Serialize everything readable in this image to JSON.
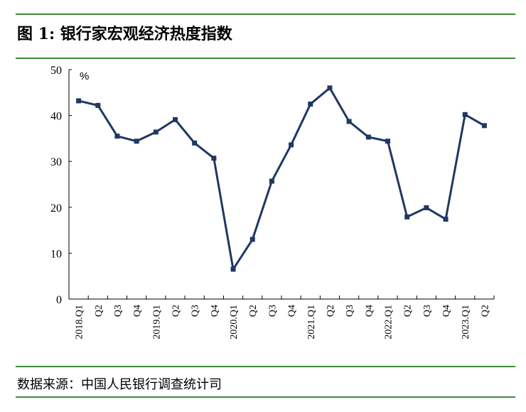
{
  "title": "图 1:  银行家宏观经济热度指数",
  "source": "数据来源：中国人民银行调查统计司",
  "chart_data": {
    "type": "line",
    "title": "图 1:  银行家宏观经济热度指数",
    "ylabel": "%",
    "ylim": [
      0,
      50
    ],
    "yticks": [
      0,
      10,
      20,
      30,
      40,
      50
    ],
    "grid": false,
    "categories": [
      "2018.Q1",
      "Q2",
      "Q3",
      "Q4",
      "2019.Q1",
      "Q2",
      "Q3",
      "Q4",
      "2020.Q1",
      "Q2",
      "Q3",
      "Q4",
      "2021.Q1",
      "Q2",
      "Q3",
      "Q4",
      "2022.Q1",
      "Q2",
      "Q3",
      "Q4",
      "2023.Q1",
      "Q2"
    ],
    "values": [
      43.2,
      42.2,
      35.5,
      34.4,
      36.4,
      39.1,
      34.0,
      30.7,
      6.5,
      13.0,
      25.7,
      33.6,
      42.5,
      46.0,
      38.7,
      35.3,
      34.4,
      17.9,
      19.9,
      17.4,
      40.2,
      37.8
    ],
    "line_color": "#1f3864",
    "rule_color": "#3d8b37"
  }
}
